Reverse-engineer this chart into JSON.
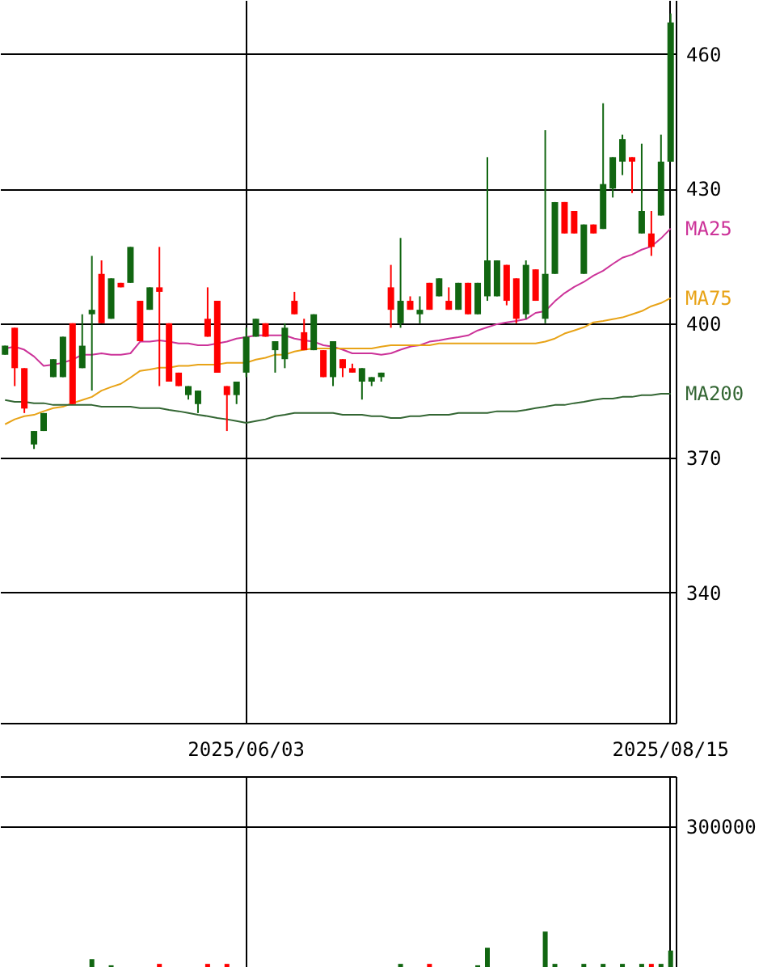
{
  "chart_data": [
    {
      "type": "candlestick",
      "categories": [
        null,
        null,
        null,
        null,
        null,
        null,
        null,
        null,
        null,
        null,
        null,
        null,
        null,
        null,
        null,
        null,
        null,
        null,
        null,
        null,
        null,
        null,
        null,
        null,
        null,
        "2025/06/03",
        null,
        null,
        null,
        null,
        null,
        null,
        null,
        null,
        null,
        null,
        null,
        null,
        null,
        null,
        null,
        null,
        null,
        null,
        null,
        null,
        null,
        null,
        null,
        null,
        null,
        null,
        null,
        null,
        null,
        null,
        null,
        null,
        null,
        null,
        null,
        null,
        null,
        null,
        null,
        null,
        null,
        null,
        null,
        "2025/08/15"
      ],
      "ohlc": [
        [
          393,
          395,
          393,
          395
        ],
        [
          399,
          399,
          386,
          390
        ],
        [
          390,
          390,
          380,
          381
        ],
        [
          373,
          376,
          372,
          376
        ],
        [
          376,
          380,
          376,
          380
        ],
        [
          388,
          392,
          388,
          392
        ],
        [
          388,
          397,
          388,
          397
        ],
        [
          400,
          400,
          382,
          382
        ],
        [
          390,
          402,
          390,
          395
        ],
        [
          402,
          415,
          385,
          403
        ],
        [
          411,
          414,
          400,
          400
        ],
        [
          401,
          410,
          401,
          410
        ],
        [
          409,
          409,
          408,
          408
        ],
        [
          409,
          417,
          409,
          417
        ],
        [
          405,
          405,
          396,
          396
        ],
        [
          403,
          408,
          403,
          408
        ],
        [
          408,
          417,
          386,
          407
        ],
        [
          400,
          400,
          387,
          387
        ],
        [
          389,
          389,
          386,
          386
        ],
        [
          384,
          386,
          383,
          386
        ],
        [
          382,
          385,
          380,
          385
        ],
        [
          401,
          408,
          397,
          397
        ],
        [
          405,
          405,
          389,
          389
        ],
        [
          386,
          386,
          376,
          384
        ],
        [
          384,
          387,
          382,
          387
        ],
        [
          389,
          399,
          388,
          397
        ],
        [
          397,
          401,
          397,
          401
        ],
        [
          400,
          400,
          397,
          397
        ],
        [
          394,
          396,
          389,
          396
        ],
        [
          392,
          400,
          390,
          399
        ],
        [
          405,
          407,
          402,
          402
        ],
        [
          398,
          401,
          394,
          394
        ],
        [
          394,
          402,
          394,
          402
        ],
        [
          394,
          394,
          388,
          388
        ],
        [
          388,
          396,
          386,
          396
        ],
        [
          392,
          392,
          388,
          390
        ],
        [
          390,
          391,
          389,
          389
        ],
        [
          387,
          390,
          383,
          390
        ],
        [
          387,
          388,
          386,
          388
        ],
        [
          388,
          389,
          387,
          389
        ],
        [
          408,
          413,
          399,
          403
        ],
        [
          400,
          419,
          399,
          405
        ],
        [
          405,
          406,
          403,
          403
        ],
        [
          402,
          406,
          400,
          403
        ],
        [
          409,
          409,
          403,
          403
        ],
        [
          406,
          410,
          406,
          410
        ],
        [
          405,
          408,
          403,
          403
        ],
        [
          403,
          409,
          403,
          409
        ],
        [
          409,
          409,
          402,
          402
        ],
        [
          402,
          409,
          402,
          409
        ],
        [
          406,
          437,
          405,
          414
        ],
        [
          406,
          414,
          406,
          414
        ],
        [
          413,
          413,
          404,
          405
        ],
        [
          410,
          410,
          400,
          401
        ],
        [
          402,
          414,
          401,
          413
        ],
        [
          412,
          412,
          405,
          405
        ],
        [
          401,
          443,
          400,
          411
        ],
        [
          411,
          427,
          411,
          427
        ],
        [
          427,
          427,
          420,
          420
        ],
        [
          425,
          425,
          420,
          420
        ],
        [
          411,
          422,
          411,
          422
        ],
        [
          422,
          422,
          420,
          420
        ],
        [
          421,
          449,
          421,
          431
        ],
        [
          430,
          437,
          428,
          437
        ],
        [
          436,
          442,
          433,
          441
        ],
        [
          437,
          437,
          429,
          436
        ],
        [
          420,
          440,
          420,
          425
        ],
        [
          420,
          425,
          415,
          417
        ],
        [
          424,
          442,
          424,
          436
        ],
        [
          436,
          469,
          436,
          467
        ]
      ],
      "colors": [
        "#116611",
        "#ff0000",
        "#ff0000",
        "#116611",
        "#116611",
        "#116611",
        "#116611",
        "#ff0000",
        "#116611",
        "#116611",
        "#ff0000",
        "#116611",
        "#ff0000",
        "#116611",
        "#ff0000",
        "#116611",
        "#ff0000",
        "#ff0000",
        "#ff0000",
        "#116611",
        "#116611",
        "#ff0000",
        "#ff0000",
        "#ff0000",
        "#116611",
        "#116611",
        "#116611",
        "#ff0000",
        "#116611",
        "#116611",
        "#ff0000",
        "#ff0000",
        "#116611",
        "#ff0000",
        "#116611",
        "#ff0000",
        "#ff0000",
        "#116611",
        "#116611",
        "#116611",
        "#ff0000",
        "#116611",
        "#ff0000",
        "#116611",
        "#ff0000",
        "#116611",
        "#ff0000",
        "#116611",
        "#ff0000",
        "#116611",
        "#116611",
        "#116611",
        "#ff0000",
        "#ff0000",
        "#116611",
        "#ff0000",
        "#116611",
        "#116611",
        "#ff0000",
        "#ff0000",
        "#116611",
        "#ff0000",
        "#116611",
        "#116611",
        "#116611",
        "#ff0000",
        "#116611",
        "#ff0000",
        "#116611",
        "#116611"
      ],
      "series": [
        {
          "type": "line",
          "name": "MA25",
          "color": "#cc3399",
          "values": [
            394.4,
            394.8,
            394.1,
            392.6,
            390.5,
            390.8,
            391.2,
            391.9,
            393.0,
            393.0,
            393.3,
            393.0,
            393.0,
            393.3,
            395.9,
            395.9,
            396.2,
            395.9,
            395.5,
            395.5,
            395.1,
            395.1,
            395.5,
            395.9,
            396.6,
            396.9,
            397.3,
            397.3,
            397.3,
            397.3,
            396.6,
            396.2,
            395.9,
            395.1,
            394.8,
            394.1,
            393.3,
            393.3,
            393.3,
            393.0,
            393.3,
            394.1,
            394.8,
            395.1,
            395.9,
            396.2,
            396.6,
            396.9,
            397.3,
            398.4,
            399.1,
            399.8,
            400.2,
            400.5,
            400.9,
            402.3,
            402.7,
            404.9,
            406.7,
            408.1,
            409.2,
            410.6,
            411.7,
            413.2,
            414.6,
            415.3,
            416.4,
            417.1,
            418.9,
            421.1
          ]
        },
        {
          "type": "line",
          "name": "MA75",
          "color": "#e8a317",
          "values": [
            377.5,
            378.6,
            379.3,
            379.6,
            380.4,
            381.1,
            381.4,
            382.2,
            382.9,
            383.6,
            385.0,
            385.8,
            386.5,
            387.9,
            389.4,
            389.7,
            390.1,
            390.1,
            390.5,
            390.5,
            390.8,
            390.8,
            390.8,
            391.2,
            391.2,
            391.2,
            391.9,
            392.3,
            393.0,
            393.0,
            393.7,
            394.1,
            394.4,
            394.4,
            394.4,
            394.4,
            394.4,
            394.4,
            394.4,
            394.8,
            395.1,
            395.1,
            395.1,
            395.1,
            395.1,
            395.5,
            395.5,
            395.5,
            395.5,
            395.5,
            395.5,
            395.5,
            395.5,
            395.5,
            395.5,
            395.5,
            395.9,
            396.6,
            397.7,
            398.4,
            399.1,
            400.2,
            400.5,
            400.9,
            401.3,
            402.0,
            402.7,
            403.8,
            404.5,
            405.6
          ]
        },
        {
          "type": "line",
          "name": "MA200",
          "color": "#336633",
          "values": [
            382.9,
            382.5,
            382.5,
            382.2,
            382.2,
            381.8,
            381.8,
            381.8,
            381.8,
            381.8,
            381.4,
            381.4,
            381.4,
            381.4,
            381.1,
            381.1,
            381.1,
            380.7,
            380.4,
            380.0,
            379.6,
            379.3,
            378.9,
            378.6,
            378.2,
            377.8,
            378.2,
            378.6,
            379.3,
            379.6,
            380.0,
            380.0,
            380.0,
            380.0,
            380.0,
            379.6,
            379.6,
            379.6,
            379.3,
            379.3,
            378.9,
            378.9,
            379.3,
            379.3,
            379.6,
            379.6,
            379.6,
            380.0,
            380.0,
            380.0,
            380.0,
            380.4,
            380.4,
            380.4,
            380.7,
            381.1,
            381.4,
            381.8,
            381.8,
            382.2,
            382.5,
            382.9,
            383.2,
            383.2,
            383.6,
            383.6,
            384.0,
            384.0,
            384.3,
            384.3
          ]
        }
      ],
      "ylim": [
        311,
        472
      ],
      "yticks": [
        340,
        370,
        400,
        430,
        460
      ],
      "grid": true
    },
    {
      "type": "bar",
      "categories": [
        null,
        null,
        null,
        null,
        null,
        null,
        null,
        null,
        null,
        null,
        null,
        null,
        null,
        null,
        null,
        null,
        null,
        null,
        null,
        null,
        null,
        null,
        null,
        null,
        null,
        "2025/06/03",
        null,
        null,
        null,
        null,
        null,
        null,
        null,
        null,
        null,
        null,
        null,
        null,
        null,
        null,
        null,
        null,
        null,
        null,
        null,
        null,
        null,
        null,
        null,
        null,
        null,
        null,
        null,
        null,
        null,
        null,
        null,
        null,
        null,
        null,
        null,
        null,
        null,
        null,
        null,
        null,
        null,
        null,
        null,
        "2025/08/15"
      ],
      "values": [
        null,
        null,
        null,
        null,
        null,
        null,
        null,
        null,
        null,
        20000,
        null,
        7000,
        null,
        null,
        null,
        null,
        10000,
        null,
        null,
        null,
        null,
        10000,
        null,
        10000,
        null,
        null,
        null,
        null,
        null,
        null,
        null,
        null,
        null,
        null,
        null,
        null,
        null,
        null,
        null,
        null,
        null,
        10000,
        null,
        null,
        10000,
        null,
        null,
        null,
        null,
        7000,
        44000,
        null,
        null,
        null,
        null,
        null,
        78000,
        10000,
        null,
        null,
        10000,
        null,
        10000,
        null,
        10000,
        null,
        10000,
        10000,
        10000,
        38000
      ],
      "colors": [
        "#116611",
        "#ff0000",
        "#ff0000",
        "#116611",
        "#116611",
        "#116611",
        "#116611",
        "#ff0000",
        "#116611",
        "#116611",
        "#ff0000",
        "#116611",
        "#ff0000",
        "#116611",
        "#ff0000",
        "#116611",
        "#ff0000",
        "#ff0000",
        "#ff0000",
        "#116611",
        "#116611",
        "#ff0000",
        "#ff0000",
        "#ff0000",
        "#116611",
        "#116611",
        "#116611",
        "#ff0000",
        "#116611",
        "#116611",
        "#ff0000",
        "#ff0000",
        "#116611",
        "#ff0000",
        "#116611",
        "#ff0000",
        "#ff0000",
        "#116611",
        "#116611",
        "#116611",
        "#ff0000",
        "#116611",
        "#ff0000",
        "#116611",
        "#ff0000",
        "#116611",
        "#ff0000",
        "#116611",
        "#ff0000",
        "#116611",
        "#116611",
        "#116611",
        "#ff0000",
        "#ff0000",
        "#116611",
        "#ff0000",
        "#116611",
        "#116611",
        "#ff0000",
        "#ff0000",
        "#116611",
        "#ff0000",
        "#116611",
        "#116611",
        "#116611",
        "#ff0000",
        "#116611",
        "#ff0000",
        "#116611",
        "#116611"
      ],
      "ylim": [
        0,
        405000
      ],
      "yticks": [
        300000
      ],
      "grid": true,
      "tick_labels": "y"
    }
  ]
}
